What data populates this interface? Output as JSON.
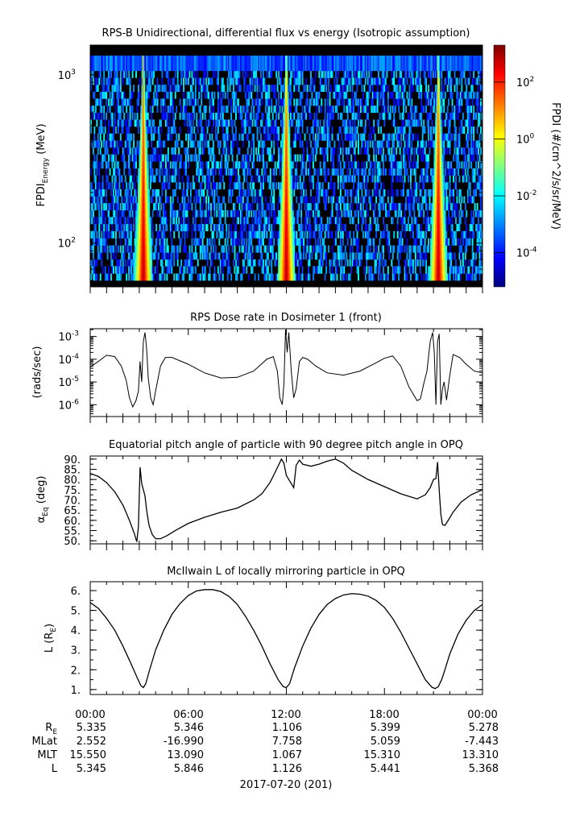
{
  "colors": {
    "background": "#ffffff",
    "line": "#000000",
    "spectrogram_empty": "#000000"
  },
  "chart_data": [
    {
      "type": "heatmap",
      "title": "RPS-B  Unidirectional, differential flux vs energy (Isotropic assumption)",
      "ylabel": "FPDI",
      "ylabel_subscript": "Energy",
      "ylabel_unit": " (MeV)",
      "y_scale": "log",
      "ylim": [
        55,
        1500
      ],
      "y_ticks": [
        {
          "base": "10",
          "exp": "2",
          "value": 100
        },
        {
          "base": "10",
          "exp": "3",
          "value": 1000
        }
      ],
      "x_range_hours": [
        0,
        24
      ],
      "colorbar": {
        "label": "FPDI (#/cm^2/s/sr/MeV)",
        "scale": "log",
        "range_exp": [
          -5.2,
          3.3
        ],
        "ticks": [
          {
            "base": "10",
            "exp": "-4",
            "value_exp": -4
          },
          {
            "base": "10",
            "exp": "-2",
            "value_exp": -2
          },
          {
            "base": "10",
            "exp": "0",
            "value_exp": 0
          },
          {
            "base": "10",
            "exp": "2",
            "value_exp": 2
          }
        ],
        "colormap": [
          "#00007f",
          "#0000ff",
          "#007fff",
          "#00ffff",
          "#7fff7f",
          "#ffff00",
          "#ff7f00",
          "#ff0000",
          "#7f0000"
        ]
      },
      "energy_bins_mev": [
        60,
        66,
        73,
        80,
        88,
        97,
        107,
        118,
        130,
        143,
        157,
        173,
        190,
        209,
        230,
        253,
        278,
        306,
        337,
        370,
        407,
        448,
        493,
        542,
        596,
        656,
        722,
        794,
        873,
        960,
        1056,
        1300
      ],
      "belt_crossings_hours": [
        3.25,
        12.0,
        21.3
      ],
      "time_bins": 330
    },
    {
      "type": "line",
      "title": "RPS  Dose rate in Dosimeter 1 (front)",
      "ylabel": "(rads/sec)",
      "y_scale": "log",
      "ylim": [
        3e-07,
        0.0022
      ],
      "y_ticks": [
        {
          "base": "10",
          "exp": "-6",
          "value": 1e-06
        },
        {
          "base": "10",
          "exp": "-5",
          "value": 1e-05
        },
        {
          "base": "10",
          "exp": "-4",
          "value": 0.0001
        },
        {
          "base": "10",
          "exp": "-3",
          "value": 0.001
        }
      ],
      "x_hours": [
        0,
        0.5,
        1,
        1.5,
        1.9,
        2.2,
        2.4,
        2.6,
        2.8,
        2.95,
        3.05,
        3.15,
        3.25,
        3.35,
        3.45,
        3.55,
        3.7,
        3.85,
        4.0,
        4.3,
        4.6,
        5.0,
        6.0,
        7.0,
        8.0,
        9.0,
        10.0,
        10.8,
        11.2,
        11.45,
        11.6,
        11.75,
        11.85,
        11.95,
        12.05,
        12.15,
        12.3,
        12.45,
        12.6,
        12.8,
        13.0,
        13.3,
        13.8,
        14.5,
        15.5,
        16.5,
        17.5,
        18.0,
        18.5,
        19.0,
        19.5,
        20.0,
        20.2,
        20.4,
        20.6,
        20.8,
        20.95,
        21.05,
        21.15,
        21.25,
        21.35,
        21.45,
        21.55,
        21.65,
        21.8,
        22.0,
        22.2,
        22.6,
        23.0,
        23.5,
        24.0
      ],
      "y_values": [
        4.5e-05,
        8e-05,
        0.00015,
        0.00013,
        5e-05,
        1.2e-05,
        2e-06,
        8e-07,
        1.5e-06,
        4e-06,
        8e-05,
        1e-05,
        0.0006,
        0.0015,
        0.0003,
        1.5e-05,
        2e-06,
        1e-06,
        4e-06,
        5e-05,
        0.00012,
        0.00012,
        6e-05,
        2.5e-05,
        1.5e-05,
        1.6e-05,
        3e-05,
        0.0001,
        0.00013,
        3e-05,
        2e-06,
        1e-06,
        8e-06,
        0.002,
        0.0002,
        0.0015,
        3e-05,
        2e-06,
        5e-06,
        8e-05,
        0.00012,
        0.0001,
        5e-05,
        2.5e-05,
        2e-05,
        3e-05,
        7e-05,
        0.00011,
        0.00014,
        5e-05,
        6e-06,
        1.5e-06,
        1.8e-06,
        8e-06,
        3e-05,
        0.0006,
        0.0015,
        0.0002,
        1e-06,
        0.0006,
        0.0013,
        1e-06,
        5e-06,
        1e-05,
        1.6e-06,
        2e-05,
        0.00016,
        0.00012,
        6e-05,
        3e-05,
        2.5e-05
      ]
    },
    {
      "type": "line",
      "title": "Equatorial pitch angle of particle with 90 degree pitch angle in OPQ",
      "ylabel": "α",
      "ylabel_subscript": "Eq",
      "ylabel_unit": " (deg)",
      "ylim": [
        48.5,
        91.5
      ],
      "y_ticks": [
        50,
        55,
        60,
        65,
        70,
        75,
        80,
        85,
        90
      ],
      "y_tick_labels": [
        "50.",
        "55.",
        "60.",
        "65.",
        "70.",
        "75.",
        "80.",
        "85.",
        "90."
      ],
      "x_hours": [
        0,
        0.5,
        1.0,
        1.5,
        2.0,
        2.4,
        2.7,
        2.85,
        2.95,
        3.05,
        3.15,
        3.25,
        3.35,
        3.45,
        3.6,
        3.8,
        4.0,
        4.3,
        4.7,
        5.2,
        6.0,
        7.0,
        8.0,
        9.0,
        10.0,
        10.5,
        11.0,
        11.4,
        11.7,
        11.85,
        12.0,
        12.15,
        12.3,
        12.45,
        12.6,
        12.8,
        13.0,
        13.5,
        14.0,
        14.5,
        15.0,
        15.5,
        16.0,
        17.0,
        18.0,
        19.0,
        20.0,
        20.5,
        20.8,
        21.0,
        21.15,
        21.25,
        21.35,
        21.45,
        21.55,
        21.7,
        21.9,
        22.2,
        22.7,
        23.3,
        24.0
      ],
      "y_values": [
        83,
        81.5,
        78.5,
        74,
        67.5,
        60,
        53.5,
        49.5,
        57,
        86,
        78,
        75,
        72,
        65,
        57.5,
        53,
        51,
        51,
        52.5,
        55,
        58.5,
        61.5,
        64,
        66,
        70,
        73,
        78.5,
        85,
        90,
        88,
        82,
        80,
        78,
        76,
        87,
        89.5,
        87.5,
        86.5,
        87.5,
        89,
        90,
        88,
        84.5,
        80,
        76.5,
        73,
        70.5,
        72.5,
        76,
        80,
        80.5,
        88.5,
        75,
        63,
        58,
        57.5,
        60,
        64,
        69,
        72.5,
        75
      ]
    },
    {
      "type": "line",
      "title": "McIlwain L of locally mirroring particle in OPQ",
      "ylabel": "L (R",
      "ylabel_subscript": "E",
      "ylabel_unit": ")",
      "ylim": [
        0.75,
        6.45
      ],
      "y_ticks": [
        1,
        2,
        3,
        4,
        5,
        6
      ],
      "y_tick_labels": [
        "1.",
        "2.",
        "3.",
        "4.",
        "5.",
        "6."
      ],
      "x_hours": [
        0,
        0.5,
        1.0,
        1.5,
        2.0,
        2.5,
        2.9,
        3.1,
        3.25,
        3.4,
        3.6,
        4.0,
        4.5,
        5.0,
        5.5,
        6.0,
        6.5,
        7.0,
        7.5,
        8.0,
        8.5,
        9.0,
        9.5,
        10.0,
        10.5,
        11.0,
        11.5,
        11.8,
        12.0,
        12.2,
        12.5,
        13.0,
        13.5,
        14.0,
        14.5,
        15.0,
        15.5,
        16.0,
        16.5,
        17.0,
        17.5,
        18.0,
        18.5,
        19.0,
        19.5,
        20.0,
        20.5,
        20.9,
        21.1,
        21.3,
        21.5,
        21.7,
        22.0,
        22.5,
        23.0,
        23.5,
        24.0
      ],
      "y_values": [
        5.4,
        5.1,
        4.6,
        4.0,
        3.2,
        2.3,
        1.55,
        1.2,
        1.1,
        1.3,
        1.9,
        3.0,
        4.0,
        4.8,
        5.35,
        5.75,
        5.98,
        6.05,
        6.05,
        5.95,
        5.7,
        5.3,
        4.7,
        4.0,
        3.2,
        2.3,
        1.5,
        1.15,
        1.1,
        1.3,
        2.1,
        3.2,
        4.1,
        4.8,
        5.3,
        5.6,
        5.78,
        5.85,
        5.82,
        5.72,
        5.5,
        5.15,
        4.6,
        3.9,
        3.1,
        2.3,
        1.5,
        1.12,
        1.05,
        1.15,
        1.5,
        2.0,
        2.8,
        3.8,
        4.5,
        5.0,
        5.3
      ]
    }
  ],
  "time_axis": {
    "ticks": [
      "00:00",
      "06:00",
      "12:00",
      "18:00",
      "00:00"
    ],
    "tick_hours": [
      0,
      6,
      12,
      18,
      24
    ]
  },
  "ephemeris": {
    "rows": [
      {
        "label": "R",
        "label_sub": "E",
        "values": [
          "5.335",
          "5.346",
          "1.106",
          "5.399",
          "5.278"
        ]
      },
      {
        "label": "MLat",
        "label_sub": "",
        "values": [
          "2.552",
          "-16.990",
          "7.758",
          "5.059",
          "-7.443"
        ]
      },
      {
        "label": "MLT",
        "label_sub": "",
        "values": [
          "15.550",
          "13.090",
          "1.067",
          "15.310",
          "13.310"
        ]
      },
      {
        "label": "L",
        "label_sub": "",
        "values": [
          "5.345",
          "5.846",
          "1.126",
          "5.441",
          "5.368"
        ]
      }
    ]
  },
  "date_label": "2017-07-20 (201)"
}
